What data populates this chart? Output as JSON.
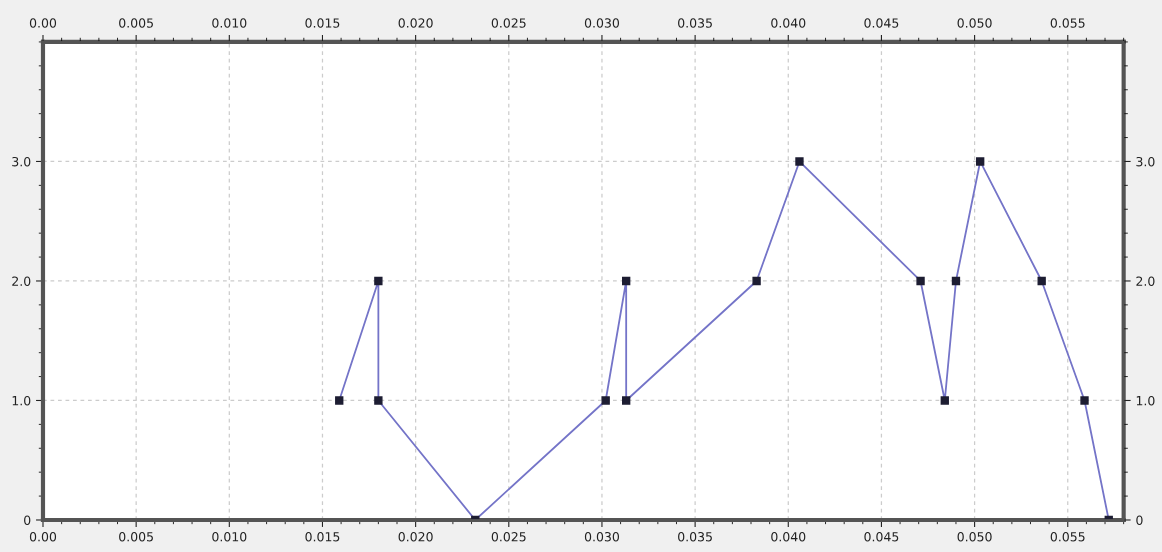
{
  "chart_data": {
    "type": "line",
    "x": [
      0.0159,
      0.018,
      0.018,
      0.0232,
      0.0302,
      0.0313,
      0.0313,
      0.0383,
      0.0406,
      0.0471,
      0.0484,
      0.049,
      0.0503,
      0.0536,
      0.0559,
      0.0572
    ],
    "series": [
      {
        "color": "#7474c8",
        "values": [
          1,
          2,
          1,
          0,
          1,
          2,
          1,
          2,
          3,
          2,
          1,
          2,
          3,
          2,
          1,
          0
        ]
      }
    ],
    "marker": "square",
    "line_style": "solid",
    "grid": true,
    "xlim": [
      0,
      0.058
    ],
    "xticks": [
      {
        "value": 0,
        "label": "0.00"
      },
      0.005,
      {
        "value": 0.01,
        "label": "0.010"
      },
      0.015,
      {
        "value": 0.02,
        "label": "0.020"
      },
      0.025,
      {
        "value": 0.03,
        "label": "0.030"
      },
      0.035,
      {
        "value": 0.04,
        "label": "0.040"
      },
      0.045,
      {
        "value": 0.05,
        "label": "0.050"
      },
      0.055
    ],
    "x2lim": [
      0,
      0.058
    ],
    "x2ticks": [
      {
        "value": 0,
        "label": "0.00"
      },
      0.005,
      {
        "value": 0.01,
        "label": "0.010"
      },
      0.015,
      {
        "value": 0.02,
        "label": "0.020"
      },
      0.025,
      {
        "value": 0.03,
        "label": "0.030"
      },
      0.035,
      {
        "value": 0.04,
        "label": "0.040"
      },
      0.045,
      {
        "value": 0.05,
        "label": "0.050"
      },
      0.055
    ],
    "ylim": [
      0,
      4
    ],
    "yticks": [
      0,
      {
        "value": 1,
        "label": "1.0"
      },
      {
        "value": 2,
        "label": "2.0"
      },
      {
        "value": 3,
        "label": "3.0"
      }
    ],
    "y2lim": [
      0,
      4
    ],
    "y2ticks": [
      0,
      {
        "value": 1,
        "label": "1.0"
      },
      {
        "value": 2,
        "label": "2.0"
      },
      {
        "value": 3,
        "label": "3.0"
      }
    ]
  }
}
